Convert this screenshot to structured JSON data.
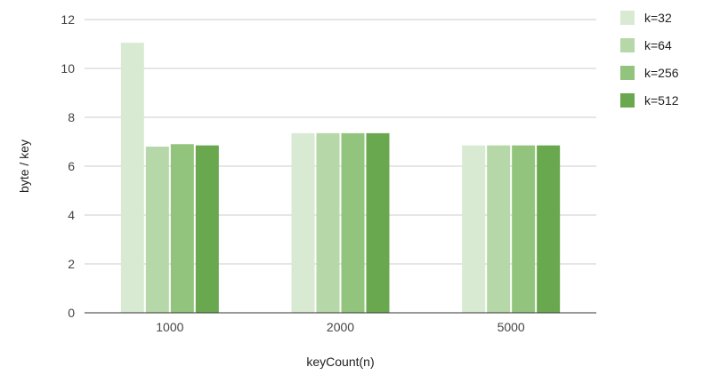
{
  "chart_data": {
    "type": "bar",
    "title": "",
    "xlabel": "keyCount(n)",
    "ylabel": "byte / key",
    "categories": [
      "1000",
      "2000",
      "5000"
    ],
    "ylim": [
      0,
      12
    ],
    "yticks": [
      0,
      2,
      4,
      6,
      8,
      10,
      12
    ],
    "grid": true,
    "legend_position": "right",
    "series": [
      {
        "name": "k=32",
        "color": "#d9ead3",
        "values": [
          11.05,
          7.35,
          6.85
        ]
      },
      {
        "name": "k=64",
        "color": "#b6d7a8",
        "values": [
          6.8,
          7.35,
          6.85
        ]
      },
      {
        "name": "k=256",
        "color": "#93c47d",
        "values": [
          6.9,
          7.35,
          6.85
        ]
      },
      {
        "name": "k=512",
        "color": "#6aa84f",
        "values": [
          6.85,
          7.35,
          6.85
        ]
      }
    ]
  }
}
